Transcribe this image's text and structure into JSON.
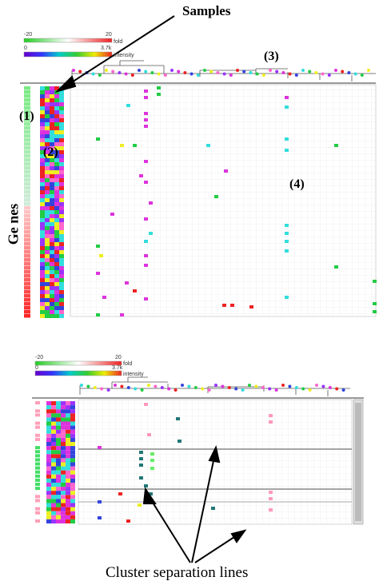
{
  "annotations": {
    "samples": "Samples",
    "genes": "Ge nes",
    "cluster_lines": "Cluster separation lines",
    "label_1": "(1)",
    "label_2": "(2)",
    "label_3": "(3)",
    "label_4": "(4)"
  },
  "top_panel": {
    "fold_legend": {
      "min": "-20",
      "max": "20",
      "label": "fold"
    },
    "intensity_legend": {
      "min": "0",
      "max": "3.7k",
      "label": "intensity"
    }
  },
  "bottom_panel": {
    "fold_legend": {
      "min": "-20",
      "max": "20",
      "label": "fold"
    },
    "intensity_legend": {
      "min": "0",
      "max": "3.7k",
      "label": "intensity"
    }
  },
  "colors": {
    "green": "#22cc44",
    "magenta": "#dd33dd",
    "cyan": "#33dddd",
    "red": "#ee2222",
    "yellow": "#eeee22",
    "teal": "#227777",
    "pink": "#ff99bb",
    "blue": "#3344dd"
  }
}
